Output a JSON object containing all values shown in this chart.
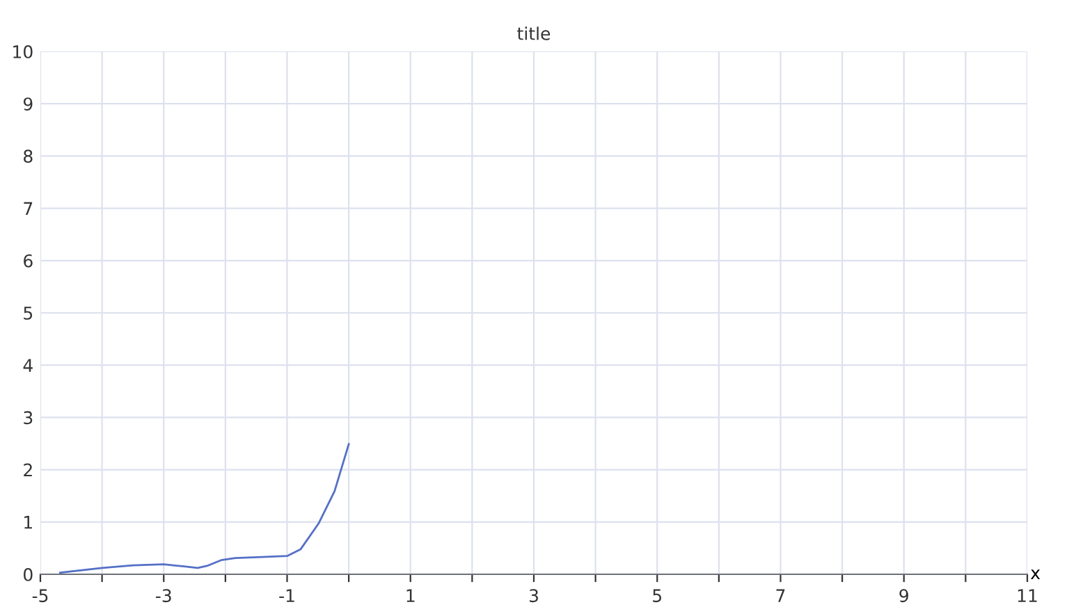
{
  "chart_data": {
    "type": "line",
    "title": "title",
    "xlabel": "x",
    "x": [
      -4.68,
      -4.0,
      -3.5,
      -3.0,
      -2.67,
      -2.45,
      -2.3,
      -2.07,
      -1.84,
      -1.4,
      -1.0,
      -0.78,
      -0.49,
      -0.23,
      0.0
    ],
    "series": [
      {
        "color": "#5470c6",
        "values": [
          0.03,
          0.12,
          0.17,
          0.19,
          0.15,
          0.12,
          0.16,
          0.27,
          0.31,
          0.33,
          0.35,
          0.48,
          0.97,
          1.59,
          2.49
        ]
      }
    ],
    "xlim": [
      -5,
      11
    ],
    "xticks": [
      -5,
      {
        "value": -4,
        "label": null
      },
      -3,
      {
        "value": -2,
        "label": null
      },
      -1,
      {
        "value": 0,
        "label": null
      },
      1,
      {
        "value": 2,
        "label": null
      },
      3,
      {
        "value": 4,
        "label": null
      },
      5,
      {
        "value": 6,
        "label": null
      },
      7,
      {
        "value": 8,
        "label": null
      },
      9,
      {
        "value": 10,
        "label": null
      },
      11
    ],
    "ylim": [
      0,
      10
    ],
    "yticks": [
      0,
      1,
      2,
      3,
      4,
      5,
      6,
      7,
      8,
      9,
      10
    ],
    "grid": true,
    "marker": "none",
    "line_style": "solid",
    "legend": false
  }
}
